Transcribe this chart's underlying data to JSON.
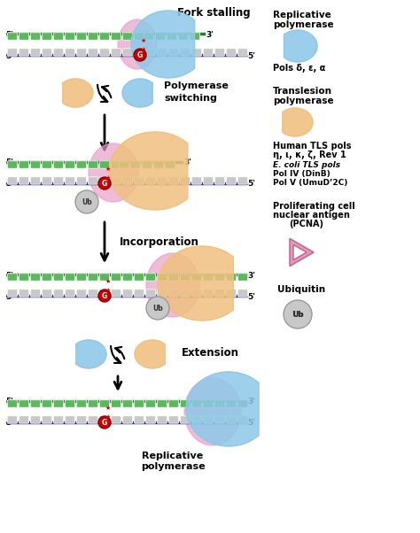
{
  "background_color": "#ffffff",
  "dna_top_color": "#2d7a2d",
  "dna_bot_color": "#2d2d8a",
  "nt_top_color": "#5cb85c",
  "nt_bot_color": "#c8c8c8",
  "pcna_color": "#e090b0",
  "rep_pol_color": "#8dc8e8",
  "tls_pol_color": "#f0c080",
  "ub_color": "#c8c8c8",
  "lesion_color": "#cc0000",
  "lesion_outline": "#880000",
  "pink_wrap_color": "#e8a0c8",
  "scene1_label": "Fork stalling",
  "scene2_label_line1": "Polymerase",
  "scene2_label_line2": "switching",
  "scene3_label": "Incorporation",
  "scene4_label": "Extension",
  "scene5_label_line1": "Replicative",
  "scene5_label_line2": "polymerase",
  "leg1_line1": "Replicative",
  "leg1_line2": "polymerase",
  "leg1_sub": "Pols δ, ε, α",
  "leg2_line1": "Translesion",
  "leg2_line2": "polymerase",
  "leg3_line1": "Human TLS pols",
  "leg3_line2": "η, ι, κ, ζ, Rev 1",
  "leg4_line1": "E. coli TLS pols",
  "leg4_line2": "Pol IV (DinB)",
  "leg4_line3": "Pol V (UmuD’2C)",
  "leg5_line1": "Proliferating cell",
  "leg5_line2": "nuclear antigen",
  "leg5_line3": "(PCNA)",
  "leg6_line1": "Ubiquitin",
  "leg6_sub": "Ub"
}
